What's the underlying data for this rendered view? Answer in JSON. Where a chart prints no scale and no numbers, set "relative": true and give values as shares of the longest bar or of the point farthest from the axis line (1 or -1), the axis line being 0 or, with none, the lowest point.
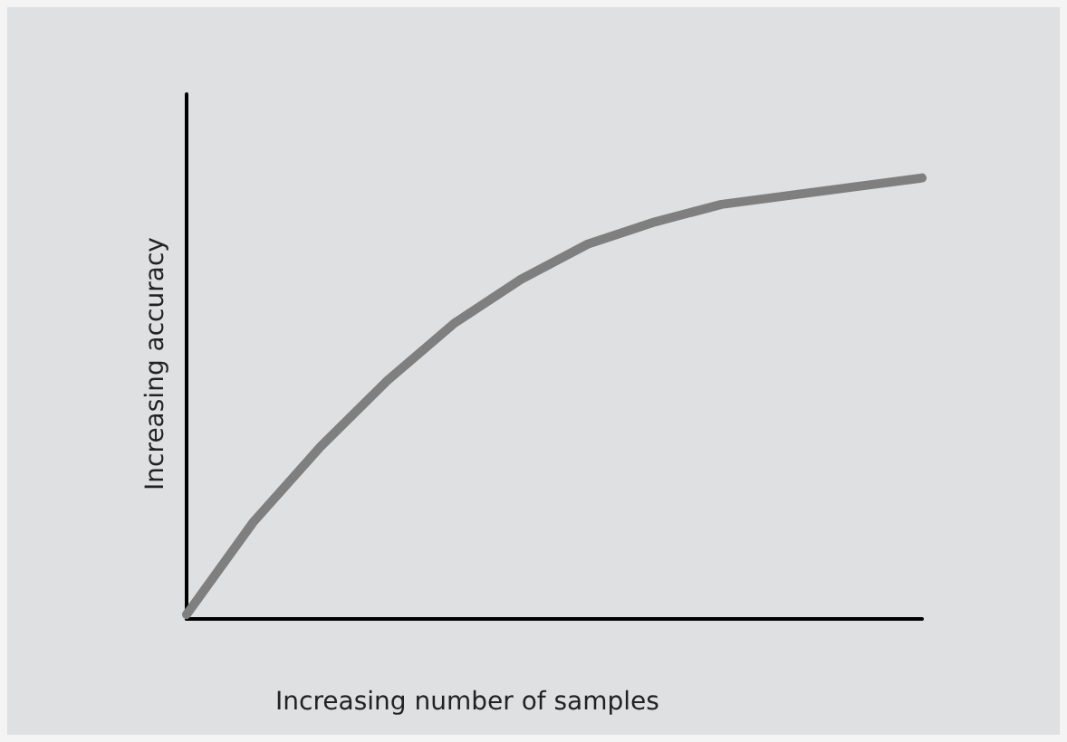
{
  "chart_data": {
    "type": "line",
    "xlabel": "Increasing number of samples",
    "ylabel": "Increasing accuracy",
    "relative": true,
    "categories": [
      null,
      null,
      null,
      null,
      null,
      null,
      null,
      null,
      null,
      null,
      null,
      null
    ],
    "series": [
      {
        "color": "#7f7f7f",
        "values": [
          0.01,
          0.22,
          0.39,
          0.54,
          0.67,
          0.77,
          0.85,
          0.9,
          0.94,
          0.96,
          0.98,
          1
        ]
      }
    ],
    "marker": "none",
    "line_style": "solid"
  }
}
